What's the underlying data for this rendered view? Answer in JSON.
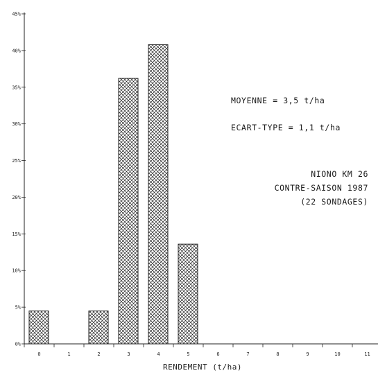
{
  "chart_data": {
    "type": "bar",
    "categories": [
      "0",
      "1",
      "2",
      "3",
      "4",
      "5",
      "6",
      "7",
      "8",
      "9",
      "10",
      "11"
    ],
    "values": [
      4.5,
      0,
      4.5,
      36.2,
      40.8,
      13.6,
      0,
      0,
      0,
      0,
      0,
      0
    ],
    "y_ticks": [
      "0%",
      "5%",
      "10%",
      "15%",
      "20%",
      "25%",
      "30%",
      "35%",
      "40%",
      "45%"
    ],
    "ylim": [
      0,
      45
    ],
    "xlabel": "RENDEMENT (t/ha)",
    "ylabel": "",
    "grid": false,
    "bar_fill": "crosshatch",
    "annotations": {
      "mean": "MOYENNE = 3,5 t/ha",
      "stdev": "ECART-TYPE = 1,1 t/ha",
      "site": "NIONO KM 26",
      "season": "CONTRE-SAISON 1987",
      "sample": "(22 SONDAGES)"
    }
  }
}
